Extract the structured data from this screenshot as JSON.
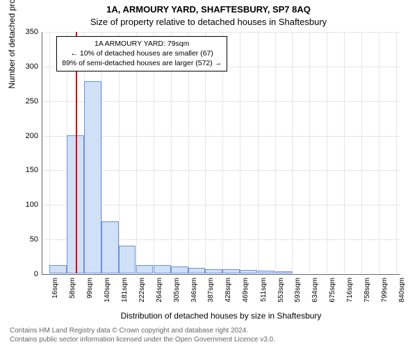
{
  "title_line1": "1A, ARMOURY YARD, SHAFTESBURY, SP7 8AQ",
  "title_line2": "Size of property relative to detached houses in Shaftesbury",
  "chart": {
    "type": "histogram",
    "x_min": 0,
    "x_max": 850,
    "y_min": 0,
    "y_max": 350,
    "y_ticks": [
      0,
      50,
      100,
      150,
      200,
      250,
      300,
      350
    ],
    "x_tick_labels": [
      "16sqm",
      "58sqm",
      "99sqm",
      "140sqm",
      "181sqm",
      "222sqm",
      "264sqm",
      "305sqm",
      "346sqm",
      "387sqm",
      "428sqm",
      "469sqm",
      "511sqm",
      "553sqm",
      "593sqm",
      "634sqm",
      "675sqm",
      "716sqm",
      "758sqm",
      "799sqm",
      "840sqm"
    ],
    "x_tick_positions": [
      16,
      58,
      99,
      140,
      181,
      222,
      264,
      305,
      346,
      387,
      428,
      469,
      511,
      553,
      593,
      634,
      675,
      716,
      758,
      799,
      840
    ],
    "bin_width": 41,
    "bars": [
      {
        "start": 16,
        "value": 12
      },
      {
        "start": 58,
        "value": 200
      },
      {
        "start": 99,
        "value": 278
      },
      {
        "start": 140,
        "value": 75
      },
      {
        "start": 181,
        "value": 40
      },
      {
        "start": 222,
        "value": 12
      },
      {
        "start": 264,
        "value": 12
      },
      {
        "start": 305,
        "value": 10
      },
      {
        "start": 346,
        "value": 8
      },
      {
        "start": 387,
        "value": 6
      },
      {
        "start": 428,
        "value": 6
      },
      {
        "start": 469,
        "value": 5
      },
      {
        "start": 511,
        "value": 4
      },
      {
        "start": 553,
        "value": 3
      }
    ],
    "bar_fill": "#cfe0f7",
    "bar_stroke": "#6f8fd6",
    "grid_color": "#e6e6e6",
    "reference_line": {
      "x": 79,
      "color": "#d40000"
    },
    "background_color": "#ffffff",
    "ylabel": "Number of detached properties",
    "xlabel": "Distribution of detached houses by size in Shaftesbury"
  },
  "infobox": {
    "line1": "1A ARMOURY YARD: 79sqm",
    "line2": "← 10% of detached houses are smaller (67)",
    "line3": "89% of semi-detached houses are larger (572) →"
  },
  "footer": {
    "line1": "Contains HM Land Registry data © Crown copyright and database right 2024.",
    "line2": "Contains public sector information licensed under the Open Government Licence v3.0."
  }
}
